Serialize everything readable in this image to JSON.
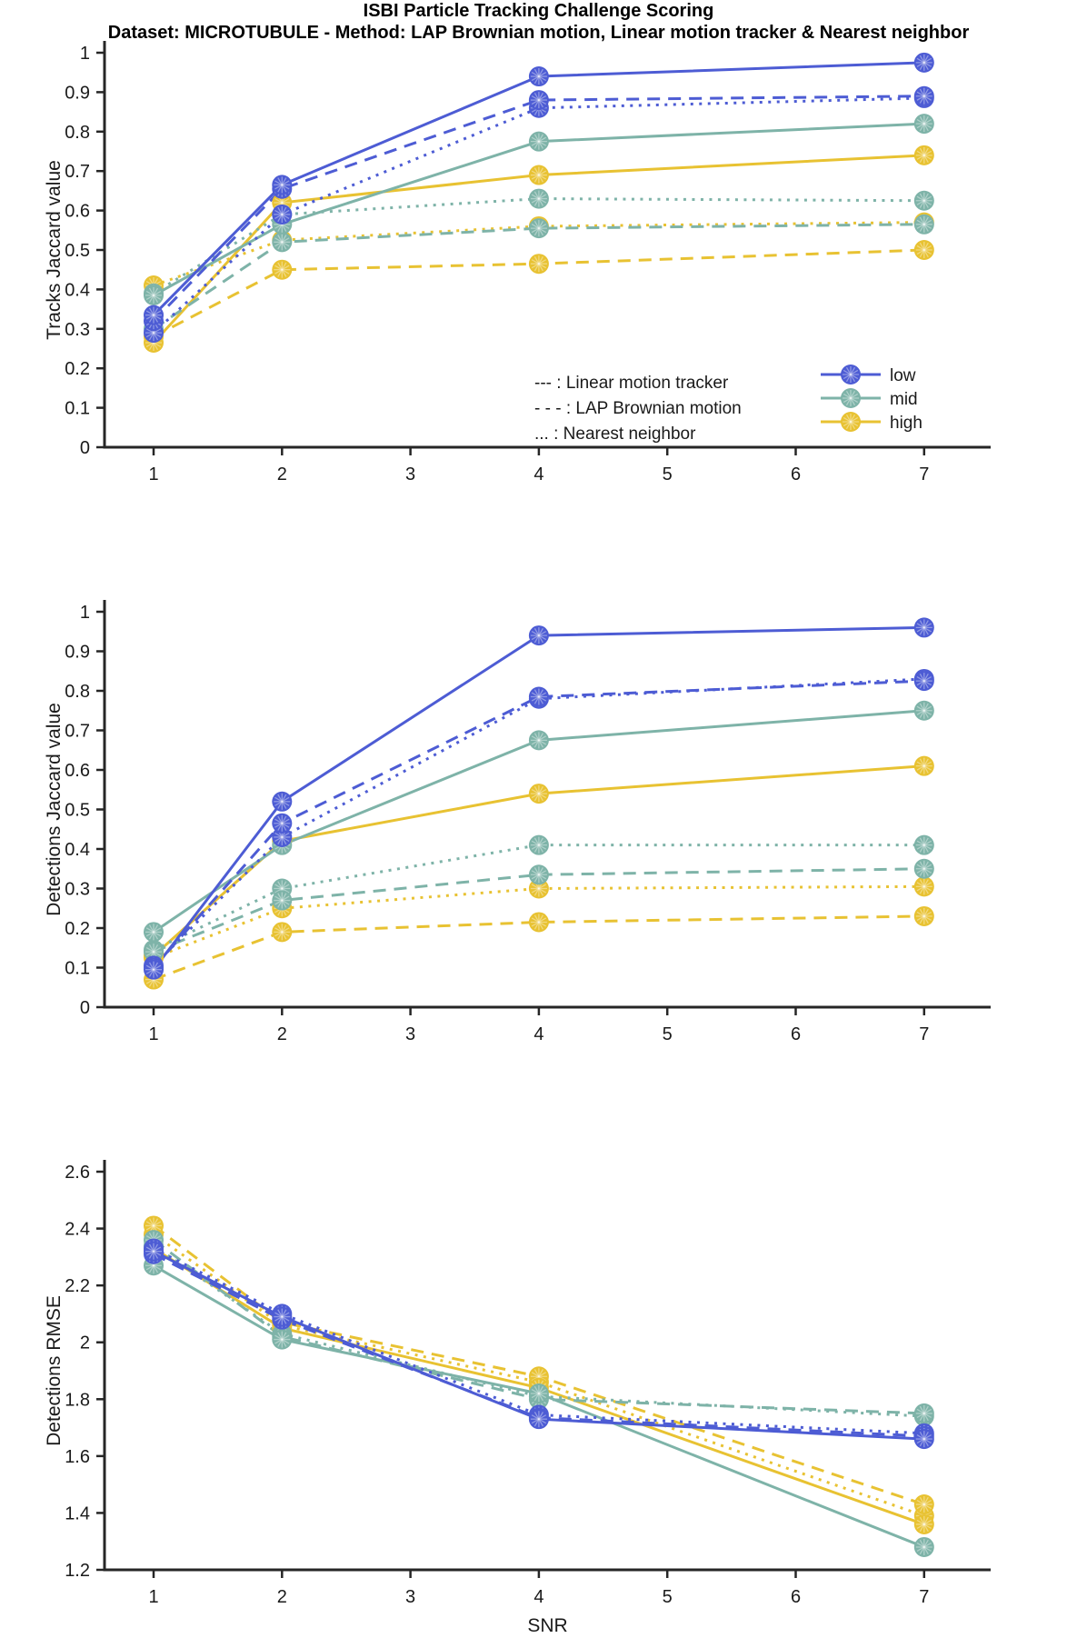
{
  "title": "ISBI Particle Tracking Challenge Scoring",
  "subtitle": "Dataset: MICROTUBULE - Method: LAP Brownian motion, Linear motion tracker & Nearest neighbor",
  "colors": {
    "low": "#4d5cd4",
    "mid": "#7eb3a8",
    "high": "#e8c232",
    "axis": "#262626"
  },
  "legend": {
    "style_entries": [
      "--- : Linear motion tracker",
      "- - - : LAP Brownian motion",
      "... : Nearest neighbor"
    ],
    "color_entries": [
      {
        "label": "low",
        "color_key": "low"
      },
      {
        "label": "mid",
        "color_key": "mid"
      },
      {
        "label": "high",
        "color_key": "high"
      }
    ]
  },
  "x_axis": {
    "label": "SNR",
    "ticks": [
      1,
      2,
      3,
      4,
      5,
      6,
      7
    ],
    "data_x": [
      1,
      2,
      4,
      7
    ]
  },
  "chart_data": [
    {
      "type": "line",
      "ylabel": "Tracks Jaccard value",
      "ylim": [
        0,
        1
      ],
      "yticks": [
        0,
        0.1,
        0.2,
        0.3,
        0.4,
        0.5,
        0.6,
        0.7,
        0.8,
        0.9,
        1
      ],
      "x": [
        1,
        2,
        4,
        7
      ],
      "series": [
        {
          "name": "low-solid",
          "color_key": "low",
          "style": "solid",
          "values": [
            0.335,
            0.665,
            0.94,
            0.975
          ]
        },
        {
          "name": "low-dashed",
          "color_key": "low",
          "style": "dashed",
          "values": [
            0.32,
            0.655,
            0.88,
            0.89
          ]
        },
        {
          "name": "low-dotted",
          "color_key": "low",
          "style": "dotted",
          "values": [
            0.29,
            0.59,
            0.86,
            0.885
          ]
        },
        {
          "name": "mid-solid",
          "color_key": "mid",
          "style": "solid",
          "values": [
            0.385,
            0.565,
            0.775,
            0.82
          ]
        },
        {
          "name": "mid-dashed",
          "color_key": "mid",
          "style": "dashed",
          "values": [
            0.3,
            0.52,
            0.555,
            0.565
          ]
        },
        {
          "name": "mid-dotted",
          "color_key": "mid",
          "style": "dotted",
          "values": [
            0.39,
            0.59,
            0.63,
            0.625
          ]
        },
        {
          "name": "high-solid",
          "color_key": "high",
          "style": "solid",
          "values": [
            0.265,
            0.62,
            0.69,
            0.74
          ]
        },
        {
          "name": "high-dashed",
          "color_key": "high",
          "style": "dashed",
          "values": [
            0.28,
            0.45,
            0.465,
            0.5
          ]
        },
        {
          "name": "high-dotted",
          "color_key": "high",
          "style": "dotted",
          "values": [
            0.41,
            0.525,
            0.56,
            0.57
          ]
        }
      ]
    },
    {
      "type": "line",
      "ylabel": "Detections Jaccard value",
      "ylim": [
        0,
        1
      ],
      "yticks": [
        0,
        0.1,
        0.2,
        0.3,
        0.4,
        0.5,
        0.6,
        0.7,
        0.8,
        0.9,
        1
      ],
      "x": [
        1,
        2,
        4,
        7
      ],
      "series": [
        {
          "name": "low-solid",
          "color_key": "low",
          "style": "solid",
          "values": [
            0.095,
            0.52,
            0.94,
            0.96
          ]
        },
        {
          "name": "low-dashed",
          "color_key": "low",
          "style": "dashed",
          "values": [
            0.1,
            0.465,
            0.785,
            0.825
          ]
        },
        {
          "name": "low-dotted",
          "color_key": "low",
          "style": "dotted",
          "values": [
            0.105,
            0.43,
            0.78,
            0.83
          ]
        },
        {
          "name": "mid-solid",
          "color_key": "mid",
          "style": "solid",
          "values": [
            0.19,
            0.41,
            0.675,
            0.75
          ]
        },
        {
          "name": "mid-dashed",
          "color_key": "mid",
          "style": "dashed",
          "values": [
            0.14,
            0.27,
            0.335,
            0.35
          ]
        },
        {
          "name": "mid-dotted",
          "color_key": "mid",
          "style": "dotted",
          "values": [
            0.145,
            0.3,
            0.41,
            0.41
          ]
        },
        {
          "name": "high-solid",
          "color_key": "high",
          "style": "solid",
          "values": [
            0.13,
            0.42,
            0.54,
            0.61
          ]
        },
        {
          "name": "high-dashed",
          "color_key": "high",
          "style": "dashed",
          "values": [
            0.07,
            0.19,
            0.215,
            0.23
          ]
        },
        {
          "name": "high-dotted",
          "color_key": "high",
          "style": "dotted",
          "values": [
            0.125,
            0.25,
            0.3,
            0.305
          ]
        }
      ]
    },
    {
      "type": "line",
      "ylabel": "Detections RMSE",
      "ylim": [
        1.2,
        2.6
      ],
      "yticks": [
        1.2,
        1.4,
        1.6,
        1.8,
        2,
        2.2,
        2.4,
        2.6
      ],
      "x": [
        1,
        2,
        4,
        7
      ],
      "series": [
        {
          "name": "low-solid",
          "color_key": "low",
          "style": "solid",
          "values": [
            2.32,
            2.09,
            1.73,
            1.66
          ]
        },
        {
          "name": "low-dashed",
          "color_key": "low",
          "style": "dashed",
          "values": [
            2.31,
            2.08,
            1.735,
            1.67
          ]
        },
        {
          "name": "low-dotted",
          "color_key": "low",
          "style": "dotted",
          "values": [
            2.33,
            2.1,
            1.745,
            1.68
          ]
        },
        {
          "name": "mid-solid",
          "color_key": "mid",
          "style": "solid",
          "values": [
            2.27,
            2.01,
            1.82,
            1.28
          ]
        },
        {
          "name": "mid-dashed",
          "color_key": "mid",
          "style": "dashed",
          "values": [
            2.36,
            2.02,
            1.8,
            1.75
          ]
        },
        {
          "name": "mid-dotted",
          "color_key": "mid",
          "style": "dotted",
          "values": [
            2.34,
            2.03,
            1.81,
            1.74
          ]
        },
        {
          "name": "high-solid",
          "color_key": "high",
          "style": "solid",
          "values": [
            2.33,
            2.05,
            1.84,
            1.36
          ]
        },
        {
          "name": "high-dashed",
          "color_key": "high",
          "style": "dashed",
          "values": [
            2.41,
            2.07,
            1.88,
            1.43
          ]
        },
        {
          "name": "high-dotted",
          "color_key": "high",
          "style": "dotted",
          "values": [
            2.38,
            2.06,
            1.86,
            1.39
          ]
        }
      ]
    }
  ]
}
